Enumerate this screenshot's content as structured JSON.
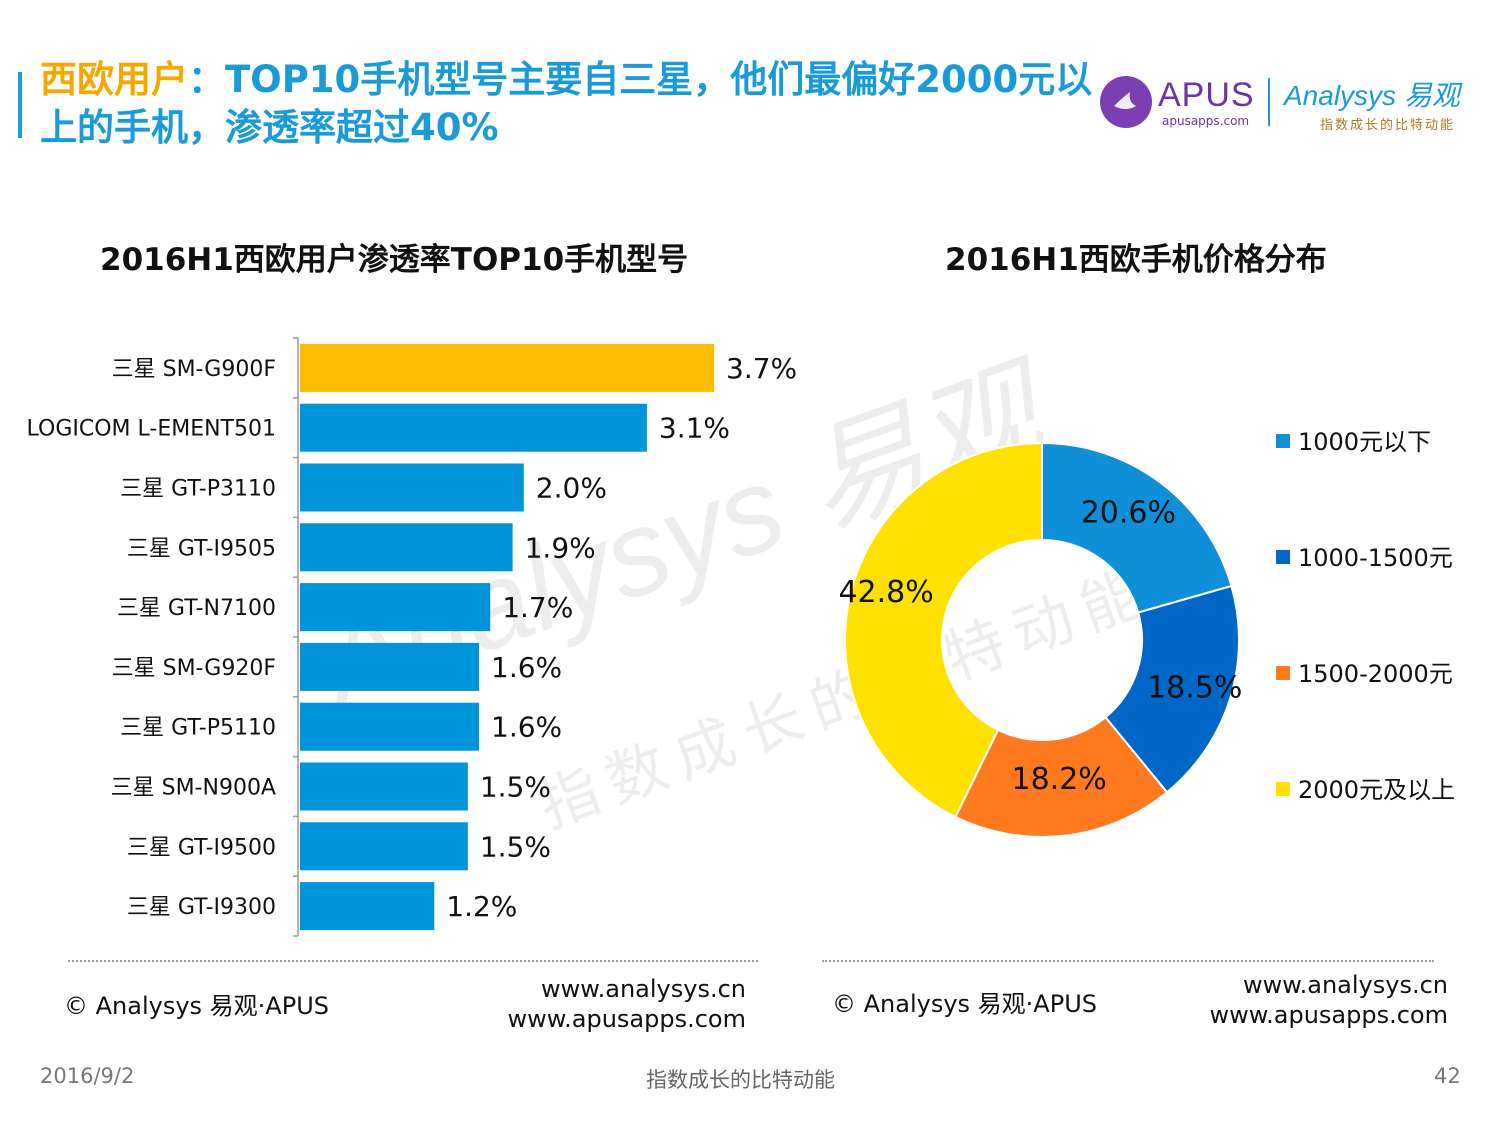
{
  "header": {
    "title_highlight": "西欧用户",
    "title_rest": "：TOP10手机型号主要自三星，他们最偏好2000元以上的手机，渗透率超过40%"
  },
  "logos": {
    "apus_name": "APUS",
    "apus_url": "apusapps.com",
    "analysys_name": "Analysys 易观",
    "analysys_slogan": "指数成长的比特动能"
  },
  "watermark": {
    "main": "Analysys 易观",
    "slogan": "指数成长的比特动能"
  },
  "chart_data": [
    {
      "type": "bar",
      "orientation": "horizontal",
      "title": "2016H1西欧用户渗透率TOP10手机型号",
      "categories": [
        "三星 SM-G900F",
        "LOGICOM L-EMENT501",
        "三星 GT-P3110",
        "三星 GT-I9505",
        "三星 GT-N7100",
        "三星 SM-G920F",
        "三星 GT-P5110",
        "三星 SM-N900A",
        "三星 GT-I9500",
        "三星 GT-I9300"
      ],
      "values": [
        3.7,
        3.1,
        2.0,
        1.9,
        1.7,
        1.6,
        1.6,
        1.5,
        1.5,
        1.2
      ],
      "labels": [
        "3.7%",
        "3.1%",
        "2.0%",
        "1.9%",
        "1.7%",
        "1.6%",
        "1.6%",
        "1.5%",
        "1.5%",
        "1.2%"
      ],
      "highlight_color": "#fbbd00",
      "bar_color": "#0095da",
      "grid": false
    },
    {
      "type": "pie",
      "donut": true,
      "title": "2016H1西欧手机价格分布",
      "categories": [
        "1000元以下",
        "1000-1500元",
        "1500-2000元",
        "2000元及以上"
      ],
      "values": [
        20.6,
        18.5,
        18.2,
        42.8
      ],
      "labels": [
        "20.6%",
        "18.5%",
        "18.2%",
        "42.8%"
      ],
      "colors": [
        "#0e8fd8",
        "#0067c7",
        "#ff7a1f",
        "#ffe100"
      ],
      "legend": "right"
    }
  ],
  "footer": {
    "copyright": "© Analysys 易观·APUS",
    "url1": "www.analysys.cn",
    "url2": "www.apusapps.com",
    "date": "2016/9/2",
    "slogan": "指数成长的比特动能",
    "page": "42"
  }
}
